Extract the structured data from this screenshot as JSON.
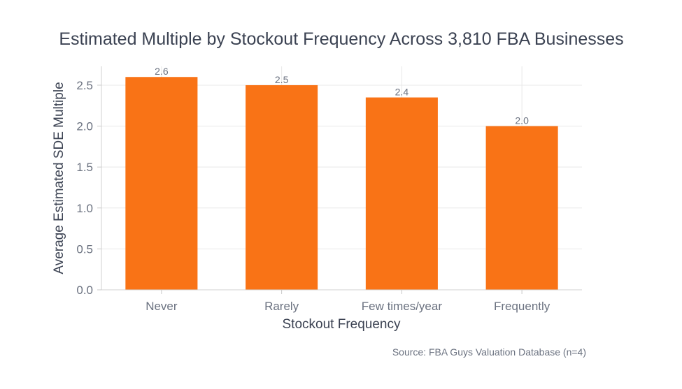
{
  "chart_data": {
    "type": "bar",
    "title": "Estimated Multiple by Stockout Frequency Across 3,810 FBA Businesses",
    "xlabel": "Stockout Frequency",
    "ylabel": "Average Estimated SDE Multiple",
    "categories": [
      "Never",
      "Rarely",
      "Few times/year",
      "Frequently"
    ],
    "values": [
      2.6,
      2.5,
      2.35,
      2.0
    ],
    "value_labels": [
      "2.6",
      "2.5",
      "2.4",
      "2.0"
    ],
    "yticks": [
      "0.0",
      "0.5",
      "1.0",
      "1.5",
      "2.0",
      "2.5"
    ],
    "ylim": [
      0,
      2.73
    ],
    "grid": true,
    "bar_color": "#f97316",
    "source": "Source: FBA Guys Valuation Database (n=4)"
  }
}
